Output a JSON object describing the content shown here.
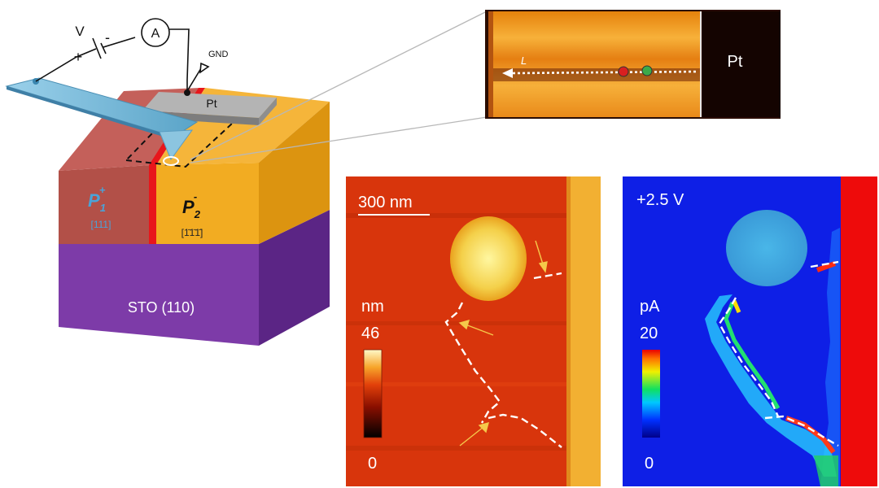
{
  "schematic": {
    "voltage_label": "V",
    "plus_sign": "+",
    "minus_sign": "-",
    "ammeter_label": "A",
    "gnd_label": "GND",
    "electrode_label": "Pt",
    "domain1_label": "P",
    "domain1_sub": "1",
    "domain1_sup": "+",
    "domain1_orient": "[111]",
    "domain2_label": "P",
    "domain2_sub": "2",
    "domain2_sup": "-",
    "domain2_orient": "[1̄1̄1̄]",
    "substrate_label": "STO (110)",
    "colors": {
      "domain1": "#b0524a",
      "domain2": "#f2ac22",
      "substrate": "#7b3ba6",
      "wall": "#e8161b",
      "electrode": "#9a9a9a",
      "tip": "#86c0dc"
    }
  },
  "inset": {
    "electrode_label": "Pt",
    "axis_label": "L"
  },
  "topo_map": {
    "scale_bar_label": "300 nm",
    "unit": "nm",
    "max_label": "46",
    "min_label": "0"
  },
  "current_map": {
    "bias_label": "+2.5 V",
    "unit": "pA",
    "max_label": "20",
    "min_label": "0"
  }
}
